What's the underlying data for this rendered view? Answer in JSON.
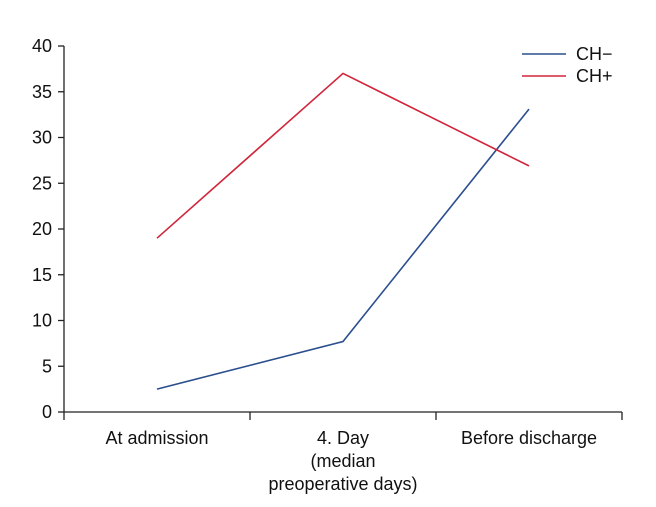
{
  "chart_data": {
    "type": "line",
    "title": "",
    "xlabel": "",
    "ylabel": "",
    "categories": [
      [
        "At admission"
      ],
      [
        "4. Day",
        "(median",
        "preoperative days)"
      ],
      [
        "Before discharge"
      ]
    ],
    "ylim": [
      0,
      40
    ],
    "yticks": [
      0,
      5,
      10,
      15,
      20,
      25,
      30,
      35,
      40
    ],
    "grid": false,
    "legend_position": "top-right",
    "series": [
      {
        "name": "CH−",
        "color": "#2b4f8e",
        "values": [
          2.5,
          7.7,
          33.1
        ]
      },
      {
        "name": "CH+",
        "color": "#d0263b",
        "values": [
          19.0,
          37.0,
          26.9
        ]
      }
    ]
  }
}
